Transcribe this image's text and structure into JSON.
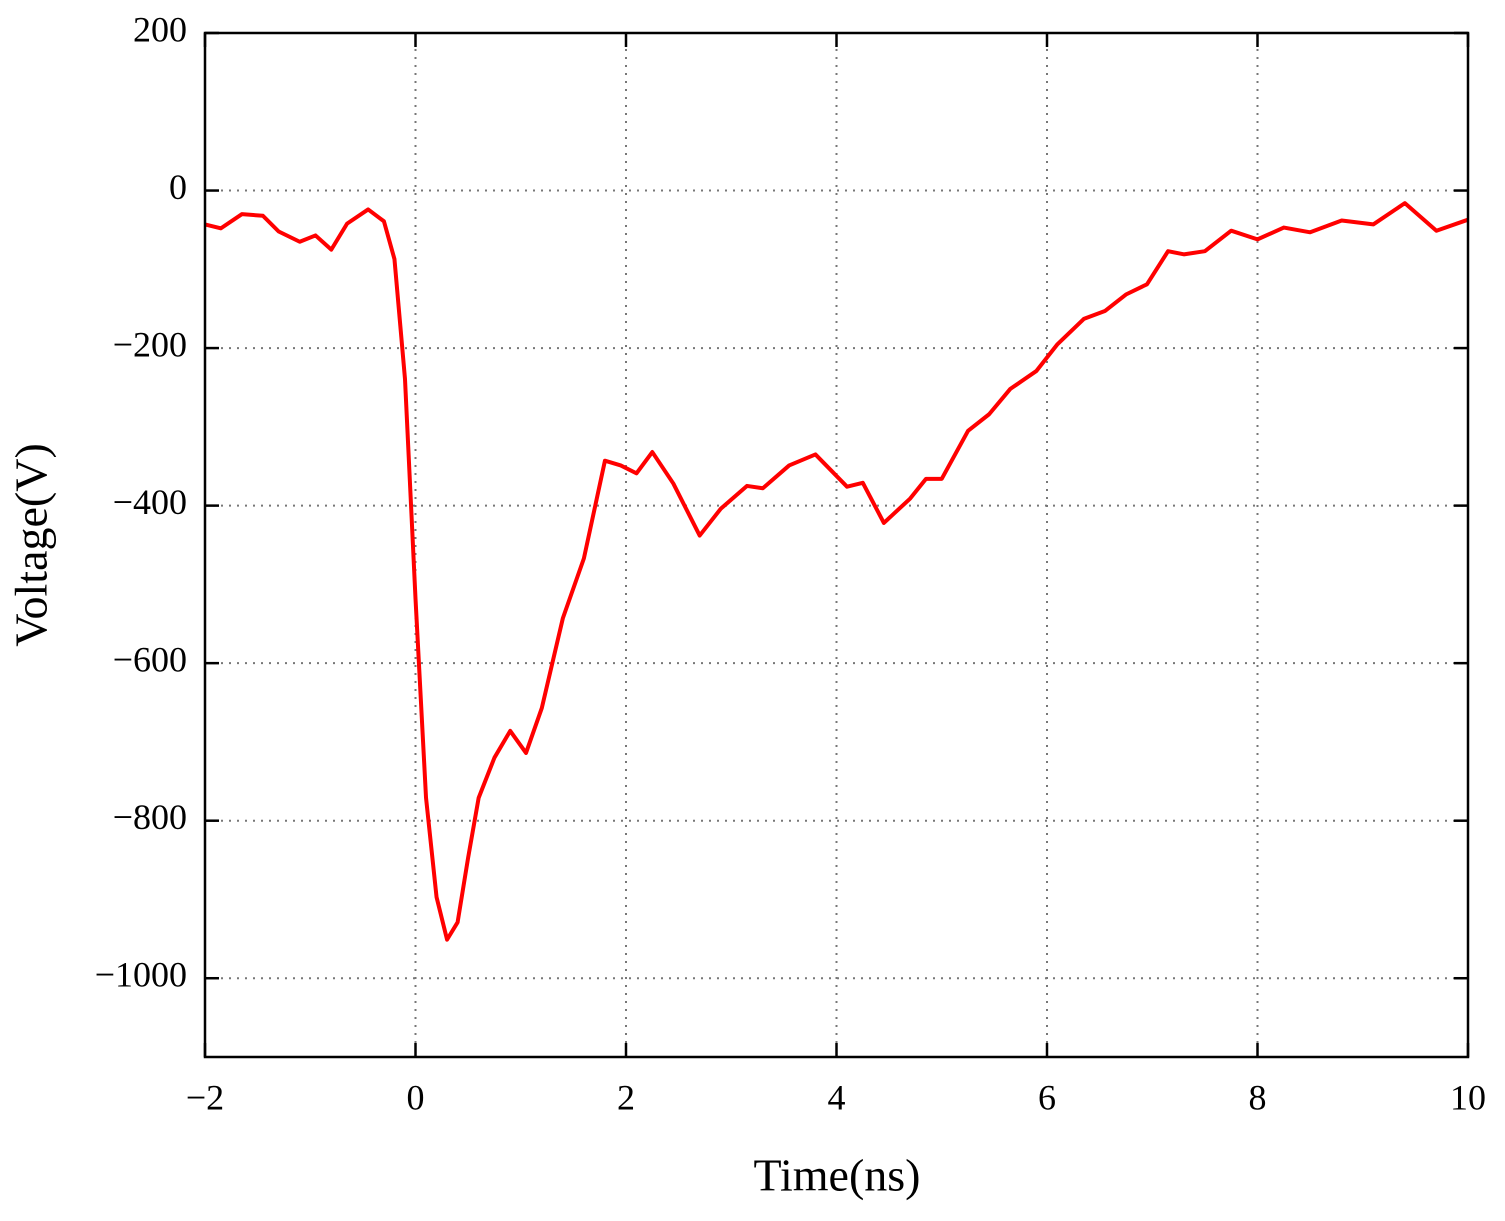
{
  "chart_data": {
    "type": "line",
    "xlabel": "Time(ns)",
    "ylabel": "Voltage(V)",
    "x": [
      -2.0,
      -1.85,
      -1.65,
      -1.45,
      -1.3,
      -1.1,
      -0.95,
      -0.8,
      -0.65,
      -0.45,
      -0.3,
      -0.2,
      -0.1,
      0.0,
      0.1,
      0.2,
      0.3,
      0.4,
      0.5,
      0.6,
      0.75,
      0.9,
      1.05,
      1.2,
      1.4,
      1.6,
      1.8,
      1.95,
      2.1,
      2.25,
      2.45,
      2.7,
      2.9,
      3.15,
      3.3,
      3.55,
      3.8,
      4.1,
      4.25,
      4.45,
      4.7,
      4.85,
      5.0,
      5.25,
      5.45,
      5.65,
      5.9,
      6.1,
      6.35,
      6.55,
      6.75,
      6.95,
      7.15,
      7.3,
      7.5,
      7.75,
      8.0,
      8.25,
      8.5,
      8.8,
      9.1,
      9.4,
      9.7,
      10.0
    ],
    "series": [
      {
        "color": "#ff0000",
        "values": [
          -43,
          -48,
          -30,
          -32,
          -52,
          -65,
          -57,
          -75,
          -42,
          -24,
          -39,
          -87,
          -239,
          -518,
          -771,
          -897,
          -951,
          -929,
          -847,
          -771,
          -720,
          -686,
          -714,
          -657,
          -543,
          -467,
          -343,
          -349,
          -359,
          -332,
          -372,
          -438,
          -404,
          -375,
          -378,
          -349,
          -335,
          -376,
          -371,
          -422,
          -391,
          -366,
          -366,
          -305,
          -284,
          -252,
          -229,
          -195,
          -163,
          -153,
          -132,
          -119,
          -77,
          -81,
          -77,
          -51,
          -62,
          -47,
          -53,
          -38,
          -43,
          -16,
          -51,
          -37
        ]
      }
    ],
    "xlim": [
      -2,
      10
    ],
    "xticks": [
      {
        "value": -2,
        "label": "−2"
      },
      0,
      2,
      4,
      6,
      8,
      10
    ],
    "ylim": [
      -1100,
      200
    ],
    "yticks": [
      {
        "value": -1000,
        "label": "−1000"
      },
      {
        "value": -800,
        "label": "−800"
      },
      {
        "value": -600,
        "label": "−600"
      },
      {
        "value": -400,
        "label": "−400"
      },
      {
        "value": -200,
        "label": "−200"
      },
      0,
      200
    ],
    "grid": true
  }
}
